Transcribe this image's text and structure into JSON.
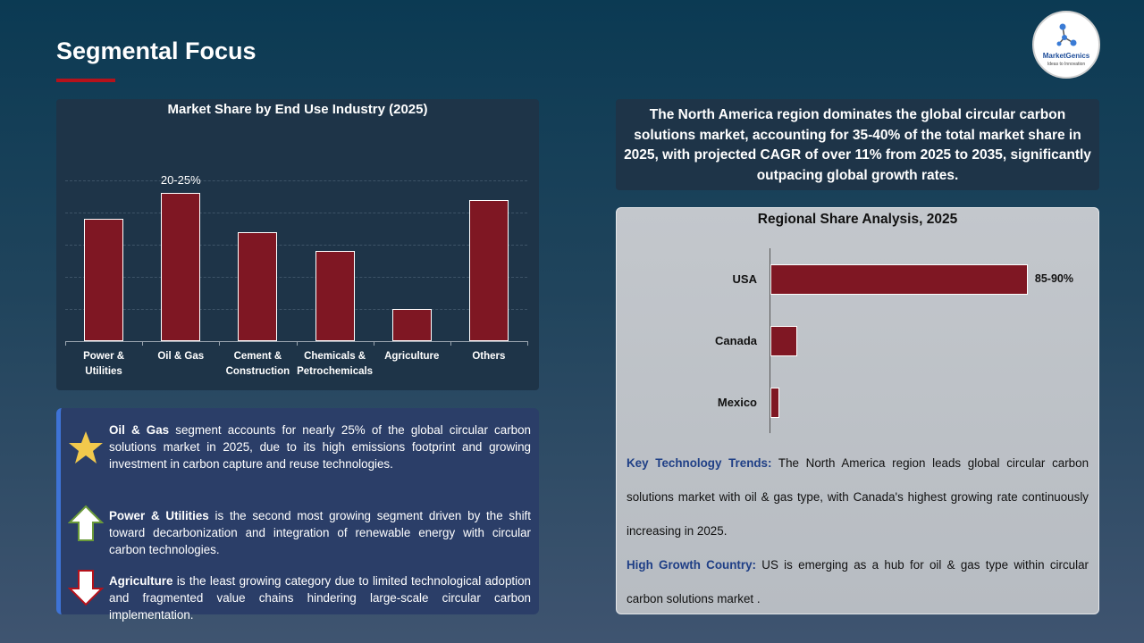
{
  "header": {
    "title": "Segmental Focus",
    "logo_name": "MarketGenics",
    "logo_tagline": "Ideas to Innovation"
  },
  "chart_data": [
    {
      "type": "bar",
      "title": "Market Share by End Use Industry (2025)",
      "categories": [
        "Power & Utilities",
        "Oil & Gas",
        "Cement & Construction",
        "Chemicals & Petrochemicals",
        "Agriculture",
        "Others"
      ],
      "values": [
        19,
        23,
        17,
        14,
        5,
        22
      ],
      "value_labels": [
        null,
        "20-25%",
        null,
        null,
        null,
        null
      ],
      "color": "#7f1723",
      "ylim": [
        0,
        25
      ],
      "yticks": [
        0,
        5,
        10,
        15,
        20,
        25
      ],
      "grid": true
    },
    {
      "type": "hbar",
      "title": "Regional Share Analysis, 2025",
      "categories": [
        "USA",
        "Canada",
        "Mexico"
      ],
      "values": [
        87.5,
        9,
        3
      ],
      "value_labels": [
        "85-90%",
        null,
        null
      ],
      "color": "#7f1723",
      "xlim": [
        0,
        100
      ]
    }
  ],
  "summary": "The North America region dominates the global circular carbon solutions market, accounting for 35-40% of the total market share in 2025, with projected CAGR of over 11% from 2025 to 2035, significantly outpacing global growth rates.",
  "insights": [
    {
      "bold": "Oil & Gas",
      "text": " segment accounts for nearly 25% of the global circular carbon solutions market in 2025, due to its high emissions footprint and growing investment in carbon capture and reuse technologies."
    },
    {
      "bold": "Power & Utilities",
      "text": " is the second most growing segment driven by the shift toward decarbonization and integration of renewable energy with circular carbon technologies."
    },
    {
      "bold": "Agriculture",
      "text": " is the least growing category due to limited technological adoption and fragmented value chains hindering large-scale circular carbon implementation."
    }
  ],
  "trends": [
    {
      "label": "Key Technology Trends:",
      "text": " The North America region leads global circular carbon solutions market with oil & gas type, with Canada's highest growing rate continuously increasing in 2025."
    },
    {
      "label": "High Growth Country:",
      "text": " US is emerging as a hub for oil & gas type  within circular carbon solutions market ."
    }
  ]
}
